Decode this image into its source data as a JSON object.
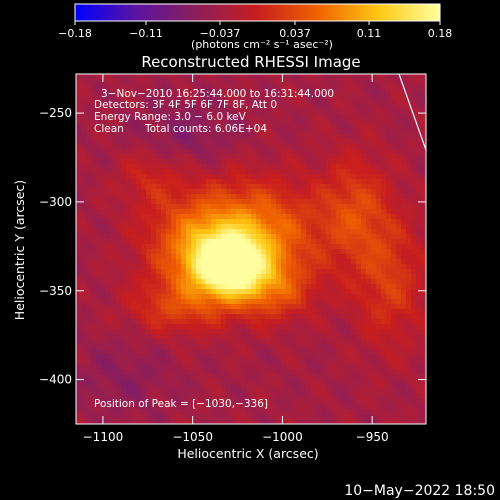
{
  "chart_data": {
    "type": "heatmap",
    "title": "Reconstructed RHESSI Image",
    "xlabel": "Heliocentric X (arcsec)",
    "ylabel": "Heliocentric Y (arcsec)",
    "xlim": [
      -1115,
      -920
    ],
    "ylim": [
      -425,
      -228
    ],
    "x_ticks": [
      -1100,
      -1050,
      -1000,
      -950
    ],
    "x_tick_labels": [
      "−1100",
      "−1050",
      "−1000",
      "−950"
    ],
    "y_ticks": [
      -250,
      -300,
      -350,
      -400
    ],
    "y_tick_labels": [
      "−250",
      "−300",
      "−350",
      "−400"
    ],
    "colorbar": {
      "range": [
        -0.18,
        0.18
      ],
      "ticks": [
        -0.18,
        -0.11,
        -0.037,
        0.037,
        0.11,
        0.18
      ],
      "tick_labels": [
        "−0.18",
        "−0.11",
        "−0.037",
        "0.037",
        "0.11",
        "0.18"
      ],
      "unit_label": "(photons cm⁻² s⁻¹ asec⁻²)",
      "colors": [
        "#0000ff",
        "#5a14a0",
        "#8c1e5a",
        "#c81e1e",
        "#f06400",
        "#ffc814",
        "#ffffa0"
      ]
    },
    "peak_position": [
      -1030,
      -336
    ],
    "annotations": [
      "3−Nov−2010 16:25:44.000 to 16:31:44.000",
      "Detectors: 3F 4F 5F 6F 7F 8F, Att 0",
      "Energy Range: 3.0 − 6.0 keV",
      "Clean",
      "Total counts: 6.06E+04",
      "Position of Peak = [−1030,−336]"
    ],
    "limb_arc": true
  },
  "footer": {
    "timestamp": "10−May−2022 18:50"
  }
}
